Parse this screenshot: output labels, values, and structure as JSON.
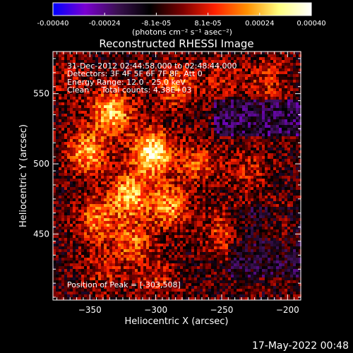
{
  "chart_data": {
    "type": "heatmap",
    "title": "Reconstructed RHESSI Image",
    "xlabel": "Heliocentric X (arcsec)",
    "ylabel": "Heliocentric Y (arcsec)",
    "xlim": [
      -378,
      -190
    ],
    "ylim": [
      403,
      580
    ],
    "xticks": [
      -350,
      -300,
      -250,
      -200
    ],
    "yticks": [
      450,
      500,
      550
    ],
    "colorbar": {
      "ticks": [
        "-0.00040",
        "-0.00024",
        "-8.1e-05",
        "8.1e-05",
        "0.00024",
        "0.00040"
      ],
      "range": [
        -0.0004,
        0.0004
      ],
      "unit_label": "(photons cm⁻² s⁻¹ asec⁻²)",
      "colormap": [
        "#0000ff",
        "#7a00d0",
        "#3a1050",
        "#000000",
        "#7a0000",
        "#ff2000",
        "#ff9000",
        "#ffff80",
        "#ffffff"
      ]
    },
    "info": {
      "line1": "31-Dec-2012 02:44:58.000 to 02:48:44.000",
      "line2": "Detectors: 3F 4F 5F 6F 7F 8F, Att 0",
      "line3": "Energy Range: 12.0 - 25.0 keV",
      "line4": "Clean     Total counts: 4.38E+03"
    },
    "peak": "Position of Peak = [-303,508]",
    "peak_x": -303,
    "peak_y": 508,
    "sources": [
      {
        "x": -303,
        "y": 508,
        "v": 0.0004
      },
      {
        "x": -333,
        "y": 537,
        "v": 0.00032
      },
      {
        "x": -352,
        "y": 508,
        "v": 0.00028
      },
      {
        "x": -320,
        "y": 478,
        "v": 0.0003
      },
      {
        "x": -290,
        "y": 470,
        "v": 0.00026
      },
      {
        "x": -345,
        "y": 460,
        "v": 0.00022
      },
      {
        "x": -318,
        "y": 445,
        "v": 0.0002
      },
      {
        "x": -285,
        "y": 555,
        "v": 0.0002
      },
      {
        "x": -268,
        "y": 500,
        "v": 0.00018
      },
      {
        "x": -248,
        "y": 452,
        "v": 0.00016
      },
      {
        "x": -230,
        "y": 495,
        "v": 0.00012
      },
      {
        "x": -215,
        "y": 560,
        "v": 0.00014
      },
      {
        "x": -250,
        "y": 560,
        "v": 0.0001
      },
      {
        "x": -340,
        "y": 425,
        "v": 0.00012
      },
      {
        "x": -300,
        "y": 420,
        "v": 0.00012
      },
      {
        "x": -205,
        "y": 455,
        "v": 0.0001
      },
      {
        "x": -365,
        "y": 560,
        "v": 0.0001
      }
    ]
  },
  "footer": {
    "timestamp": "17-May-2022 00:48"
  }
}
